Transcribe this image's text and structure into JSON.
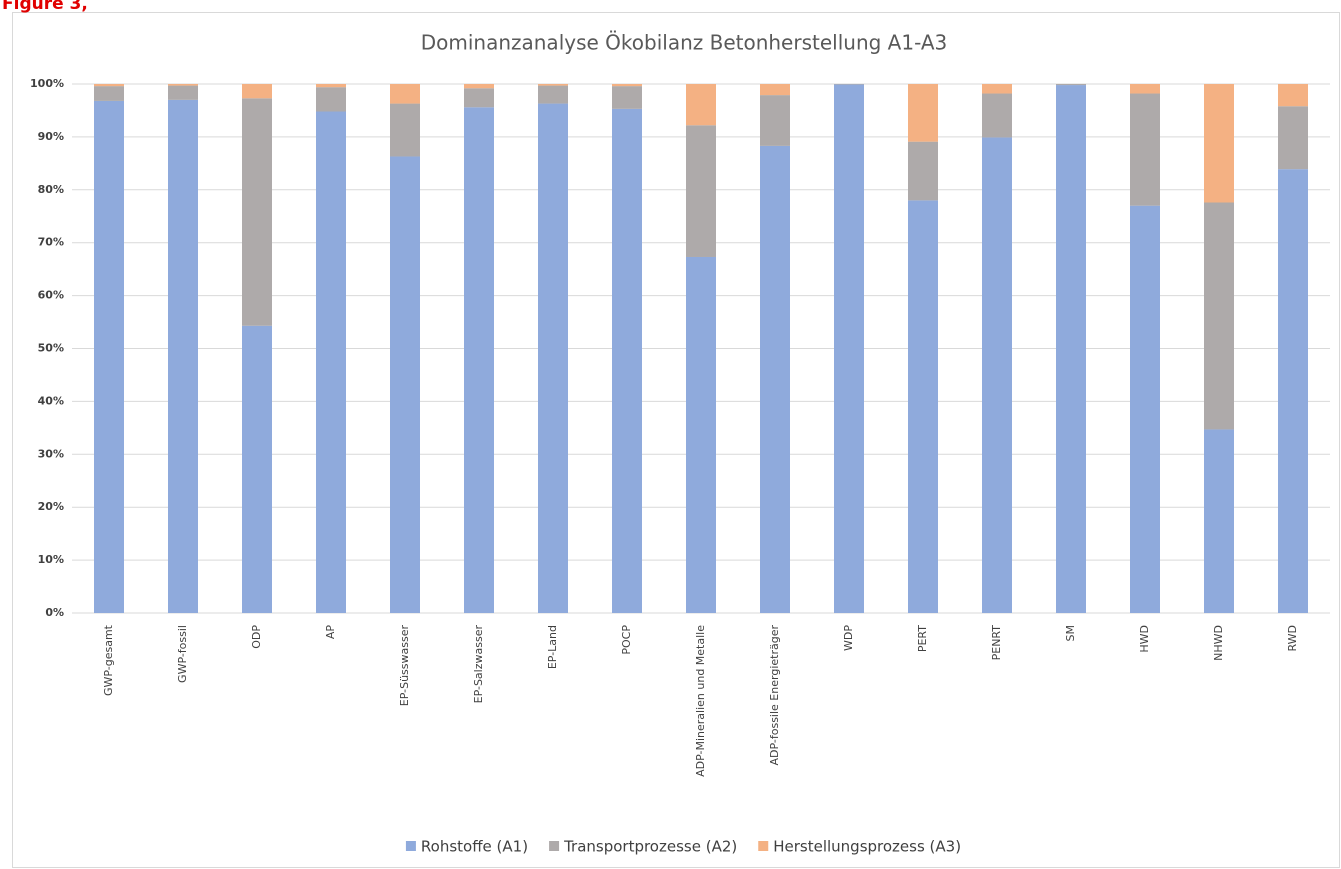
{
  "caption": "Figure 3,",
  "chart_data": {
    "type": "stacked_bar",
    "title": "Dominanzanalyse Ökobilanz Betonherstellung A1-A3",
    "categories": [
      "GWP-gesamt",
      "GWP-fossil",
      "ODP",
      "AP",
      "EP-Süsswasser",
      "EP-Salzwasser",
      "EP-Land",
      "POCP",
      "ADP-Mineralien und Metalle",
      "ADP-fossile Energieträger",
      "WDP",
      "PERT",
      "PENRT",
      "SM",
      "HWD",
      "NHWD",
      "RWD"
    ],
    "series": [
      {
        "name": "Rohstoffe (A1)",
        "color": "#8faadc",
        "values": [
          96.8,
          97,
          54.3,
          94.8,
          86.3,
          95.6,
          96.3,
          95.3,
          67.3,
          88.3,
          99.9,
          78,
          89.9,
          99.8,
          77,
          34.7,
          83.9
        ]
      },
      {
        "name": "Transportprozesse (A2)",
        "color": "#aeaaaa",
        "values": [
          2.8,
          2.7,
          43,
          4.6,
          10,
          3.6,
          3.4,
          4.3,
          24.9,
          9.6,
          0.1,
          11.1,
          8.3,
          0.2,
          21.2,
          42.9,
          11.9
        ]
      },
      {
        "name": "Herstellungsprozess (A3)",
        "color": "#f4b183",
        "values": [
          0.4,
          0.3,
          2.7,
          0.6,
          3.7,
          0.8,
          0.3,
          0.4,
          7.8,
          2.1,
          0,
          10.9,
          1.8,
          0,
          1.8,
          22.4,
          4.2
        ]
      }
    ],
    "ylim": [
      0,
      100
    ],
    "yticks": [
      {
        "value": 0,
        "label": "0%"
      },
      {
        "value": 10,
        "label": "10%"
      },
      {
        "value": 20,
        "label": "20%"
      },
      {
        "value": 30,
        "label": "30%"
      },
      {
        "value": 40,
        "label": "40%"
      },
      {
        "value": 50,
        "label": "50%"
      },
      {
        "value": 60,
        "label": "60%"
      },
      {
        "value": 70,
        "label": "70%"
      },
      {
        "value": 80,
        "label": "80%"
      },
      {
        "value": 90,
        "label": "90%"
      },
      {
        "value": 100,
        "label": "100%"
      }
    ],
    "grid": true,
    "legend": "bottom"
  }
}
